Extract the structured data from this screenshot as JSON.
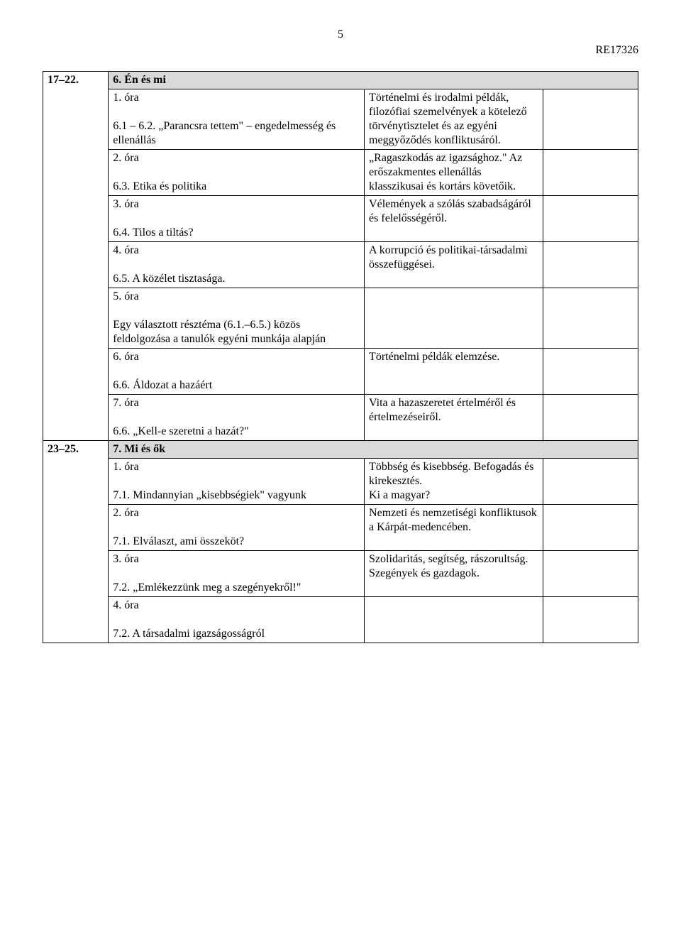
{
  "page_number": "5",
  "doc_id": "RE17326",
  "sections": [
    {
      "range": "17–22.",
      "title": "6. Én és mi",
      "rows": [
        {
          "left": "1. óra\n\n6.1 – 6.2. „Parancsra tettem\" – engedelmesség és ellenállás",
          "right": "Történelmi és irodalmi példák, filozófiai szemelvények a kötelező törvénytisztelet és az egyéni meggyőződés konfliktusáról."
        },
        {
          "left": "2. óra\n\n6.3. Etika és politika",
          "right": "„Ragaszkodás az igazsághoz.\" Az erőszakmentes ellenállás klasszikusai és kortárs követőik."
        },
        {
          "left": "3. óra\n\n6.4. Tilos a tiltás?",
          "right": "Vélemények a szólás szabadságáról és felelősségéről."
        },
        {
          "left": "4. óra\n\n6.5. A közélet tisztasága.",
          "right": "A korrupció és politikai-társadalmi összefüggései."
        },
        {
          "left": "5. óra\n\nEgy választott résztéma (6.1.–6.5.) közös feldolgozása a tanulók egyéni munkája alapján",
          "right": ""
        },
        {
          "left": "6. óra\n\n6.6. Áldozat a hazáért",
          "right": "Történelmi példák elemzése."
        },
        {
          "left": "7. óra\n\n6.6. „Kell-e szeretni a hazát?\"",
          "right": "Vita a hazaszeretet értelméről és értelmezéseiről."
        }
      ]
    },
    {
      "range": "23–25.",
      "title": "7. Mi és ők",
      "rows": [
        {
          "left": "1. óra\n\n7.1. Mindannyian „kisebbségiek\" vagyunk",
          "right": "Többség és kisebbség. Befogadás és kirekesztés.\nKi a magyar?"
        },
        {
          "left": "2. óra\n\n7.1. Elválaszt, ami összeköt?",
          "right": "Nemzeti és nemzetiségi konfliktusok a Kárpát-medencében."
        },
        {
          "left": "3. óra\n\n7.2. „Emlékezzünk meg a szegényekről!\"",
          "right": "Szolidaritás, segítség, rászorultság. Szegények és gazdagok."
        },
        {
          "left": "4. óra\n\n7.2. A társadalmi igazságosságról",
          "right": ""
        }
      ]
    }
  ]
}
